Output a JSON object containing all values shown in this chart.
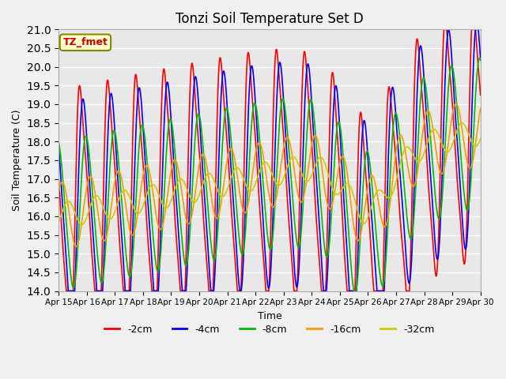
{
  "title": "Tonzi Soil Temperature Set D",
  "xlabel": "Time",
  "ylabel": "Soil Temperature (C)",
  "ylim": [
    14.0,
    21.0
  ],
  "yticks": [
    14.0,
    14.5,
    15.0,
    15.5,
    16.0,
    16.5,
    17.0,
    17.5,
    18.0,
    18.5,
    19.0,
    19.5,
    20.0,
    20.5,
    21.0
  ],
  "legend_labels": [
    "-2cm",
    "-4cm",
    "-8cm",
    "-16cm",
    "-32cm"
  ],
  "legend_colors": [
    "#ff0000",
    "#0000ff",
    "#00bb00",
    "#ff9900",
    "#cccc00"
  ],
  "annotation_text": "TZ_fmet",
  "annotation_color": "#cc0000",
  "annotation_bgcolor": "#ffffcc",
  "background_color": "#e8e8e8",
  "figsize": [
    6.4,
    4.8
  ],
  "dpi": 100,
  "xlim_days": [
    0,
    15
  ],
  "xtick_labels": [
    "Apr 15",
    "Apr 16",
    "Apr 17",
    "Apr 18",
    "Apr 19",
    "Apr 20",
    "Apr 21",
    "Apr 22",
    "Apr 23",
    "Apr 24",
    "Apr 25",
    "Apr 26",
    "Apr 27",
    "Apr 28",
    "Apr 29",
    "Apr 30"
  ],
  "xtick_positions": [
    0,
    1,
    2,
    3,
    4,
    5,
    6,
    7,
    8,
    9,
    10,
    11,
    12,
    13,
    14,
    15
  ]
}
